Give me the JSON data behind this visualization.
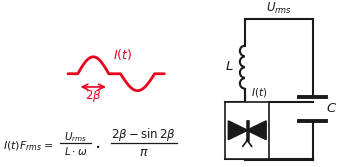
{
  "bg_color": "#ffffff",
  "waveform_color": "#e8001c",
  "circuit_color": "#1a1a1a",
  "fig_width": 3.38,
  "fig_height": 1.67,
  "dpi": 100
}
